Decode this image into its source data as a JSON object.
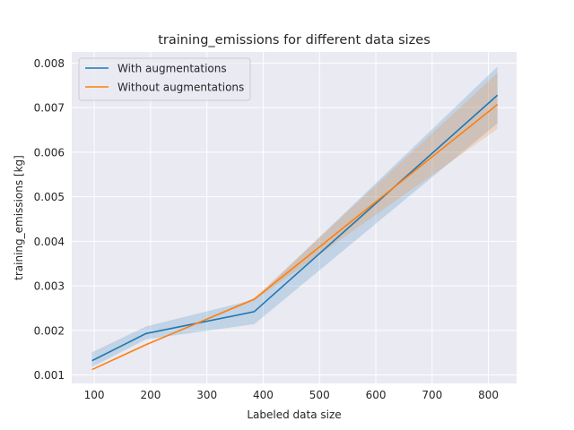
{
  "chart_data": {
    "type": "line",
    "title": "training_emissions for different data sizes",
    "xlabel": "Labeled data size",
    "ylabel": "training_emissions [kg]",
    "xlim": [
      60,
      850
    ],
    "ylim": [
      0.00081,
      0.00825
    ],
    "xticks": [
      100,
      200,
      300,
      400,
      500,
      600,
      700,
      800
    ],
    "yticks": [
      0.001,
      0.002,
      0.003,
      0.004,
      0.005,
      0.006,
      0.007,
      0.008
    ],
    "ytick_labels": [
      "0.001",
      "0.002",
      "0.003",
      "0.004",
      "0.005",
      "0.006",
      "0.007",
      "0.008"
    ],
    "grid": true,
    "legend_position": "upper-left",
    "x": [
      96,
      192,
      384,
      816
    ],
    "series": [
      {
        "name": "With augmentations",
        "color": "#1f77b4",
        "values": [
          0.00132,
          0.00193,
          0.00242,
          0.00728
        ],
        "lower": [
          0.00118,
          0.0018,
          0.00214,
          0.00665
        ],
        "upper": [
          0.00151,
          0.00209,
          0.00269,
          0.00792
        ]
      },
      {
        "name": "Without augmentations",
        "color": "#ff7f0e",
        "values": [
          0.00112,
          0.00168,
          0.0027,
          0.00707
        ],
        "lower": [
          0.00112,
          0.00168,
          0.00267,
          0.00652
        ],
        "upper": [
          0.00112,
          0.00168,
          0.00273,
          0.00778
        ]
      }
    ]
  }
}
